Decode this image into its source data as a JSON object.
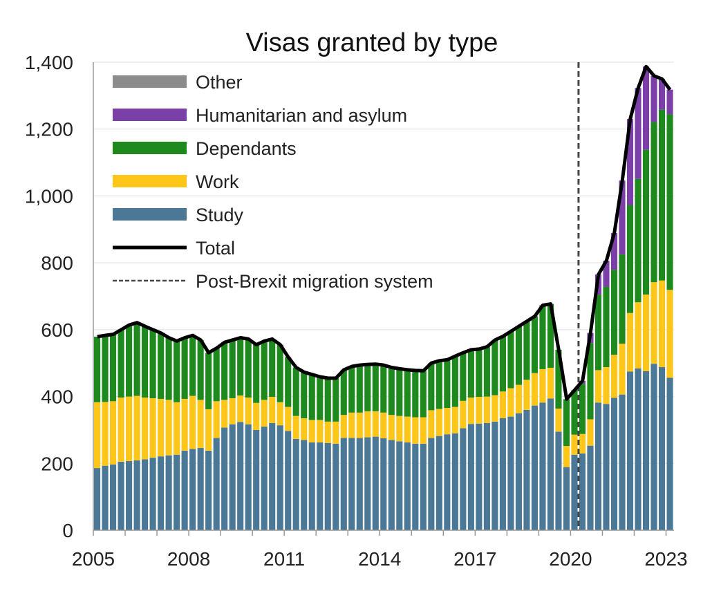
{
  "chart_data": {
    "type": "bar",
    "stacked": true,
    "title": "Visas granted by type",
    "xlabel": "",
    "ylabel": "",
    "ylim": [
      0,
      1400
    ],
    "yticks": [
      0,
      200,
      400,
      600,
      800,
      1000,
      1200,
      1400
    ],
    "ytick_labels": [
      "0",
      "200",
      "400",
      "600",
      "800",
      "1,000",
      "1,200",
      "1,400"
    ],
    "xlim": [
      2005,
      2023.25
    ],
    "xticks": [
      2005,
      2008,
      2011,
      2014,
      2017,
      2020,
      2023
    ],
    "xtick_labels": [
      "2005",
      "2008",
      "2011",
      "2014",
      "2017",
      "2020",
      "2023"
    ],
    "grid": "horizontal",
    "legend_position": "top-left",
    "x_start": 2005,
    "x_step": 0.25,
    "series": [
      {
        "name": "Study",
        "color": "#4a7896",
        "values": [
          186,
          193,
          197,
          205,
          207,
          209,
          212,
          217,
          221,
          224,
          226,
          238,
          243,
          246,
          238,
          276,
          307,
          317,
          324,
          317,
          300,
          310,
          321,
          314,
          297,
          273,
          270,
          263,
          263,
          261,
          259,
          276,
          276,
          276,
          278,
          280,
          275,
          270,
          266,
          263,
          259,
          259,
          276,
          282,
          287,
          290,
          305,
          318,
          319,
          321,
          325,
          335,
          340,
          350,
          360,
          373,
          382,
          394,
          295,
          189,
          226,
          230,
          253,
          382,
          378,
          396,
          406,
          475,
          484,
          476,
          498,
          488,
          456
        ]
      },
      {
        "name": "Work",
        "color": "#ffc61a",
        "values": [
          197,
          191,
          189,
          192,
          193,
          193,
          185,
          178,
          172,
          166,
          157,
          155,
          159,
          144,
          124,
          110,
          83,
          78,
          79,
          80,
          81,
          80,
          78,
          69,
          72,
          69,
          65,
          67,
          67,
          64,
          66,
          69,
          76,
          76,
          78,
          76,
          77,
          75,
          76,
          77,
          79,
          79,
          83,
          81,
          79,
          79,
          82,
          79,
          80,
          79,
          79,
          80,
          85,
          85,
          90,
          97,
          100,
          92,
          69,
          63,
          60,
          58,
          79,
          97,
          110,
          129,
          152,
          175,
          198,
          229,
          244,
          259,
          263
        ]
      },
      {
        "name": "Dependants",
        "color": "#1e8a1e",
        "values": [
          196,
          199,
          200,
          203,
          214,
          219,
          213,
          205,
          197,
          186,
          183,
          183,
          181,
          179,
          169,
          159,
          172,
          174,
          173,
          175,
          174,
          176,
          173,
          172,
          149,
          145,
          138,
          136,
          129,
          130,
          130,
          135,
          138,
          142,
          140,
          141,
          142,
          142,
          141,
          140,
          140,
          139,
          141,
          144,
          144,
          152,
          144,
          143,
          143,
          149,
          165,
          165,
          170,
          175,
          175,
          170,
          191,
          191,
          176,
          140,
          133,
          150,
          228,
          226,
          240,
          254,
          267,
          322,
          369,
          433,
          479,
          511,
          525
        ]
      },
      {
        "name": "Humanitarian and asylum",
        "color": "#7b3fa8",
        "values": [
          0,
          0,
          0,
          0,
          0,
          0,
          0,
          0,
          0,
          0,
          0,
          0,
          0,
          0,
          0,
          0,
          0,
          0,
          0,
          0,
          0,
          0,
          0,
          0,
          0,
          0,
          0,
          0,
          0,
          0,
          0,
          0,
          0,
          0,
          0,
          0,
          0,
          0,
          0,
          0,
          0,
          0,
          0,
          0,
          0,
          0,
          0,
          0,
          0,
          0,
          0,
          0,
          0,
          0,
          0,
          0,
          0,
          0,
          0,
          0,
          0,
          9,
          30,
          60,
          78,
          110,
          221,
          258,
          272,
          249,
          138,
          92,
          74
        ]
      },
      {
        "name": "Other",
        "color": "#8c8c8c",
        "values": [
          0,
          0,
          0,
          0,
          0,
          0,
          0,
          0,
          0,
          0,
          0,
          0,
          0,
          0,
          0,
          0,
          0,
          0,
          0,
          0,
          0,
          0,
          0,
          0,
          0,
          0,
          0,
          0,
          0,
          0,
          0,
          0,
          0,
          0,
          0,
          0,
          0,
          0,
          0,
          0,
          0,
          0,
          0,
          0,
          0,
          0,
          0,
          0,
          0,
          0,
          0,
          0,
          0,
          0,
          0,
          0,
          0,
          0,
          0,
          0,
          0,
          0,
          0,
          0,
          0,
          0,
          0,
          0,
          0,
          0,
          0,
          0,
          0
        ]
      }
    ],
    "total": {
      "name": "Total",
      "color": "#000000",
      "values": [
        579,
        583,
        586,
        600,
        614,
        621,
        610,
        600,
        590,
        576,
        566,
        576,
        583,
        569,
        531,
        545,
        562,
        569,
        576,
        572,
        555,
        566,
        572,
        555,
        518,
        487,
        473,
        466,
        459,
        455,
        455,
        480,
        490,
        494,
        496,
        497,
        494,
        487,
        483,
        480,
        478,
        477,
        500,
        507,
        510,
        521,
        531,
        540,
        542,
        549,
        569,
        580,
        595,
        610,
        625,
        640,
        673,
        677,
        540,
        392,
        419,
        447,
        590,
        765,
        806,
        889,
        1046,
        1230,
        1323,
        1387,
        1359,
        1350,
        1318
      ]
    },
    "reference_line": {
      "name": "Post-Brexit migration system",
      "x": 2020.25,
      "style": "dashed",
      "color": "#444444"
    },
    "legend": [
      {
        "label": "Other",
        "color": "#8c8c8c",
        "kind": "bar"
      },
      {
        "label": "Humanitarian and asylum",
        "color": "#7b3fa8",
        "kind": "bar"
      },
      {
        "label": "Dependants",
        "color": "#1e8a1e",
        "kind": "bar"
      },
      {
        "label": "Work",
        "color": "#ffc61a",
        "kind": "bar"
      },
      {
        "label": "Study",
        "color": "#4a7896",
        "kind": "bar"
      },
      {
        "label": "Total",
        "color": "#000000",
        "kind": "line"
      },
      {
        "label": "Post-Brexit migration system",
        "color": "#444444",
        "kind": "dashed"
      }
    ]
  }
}
